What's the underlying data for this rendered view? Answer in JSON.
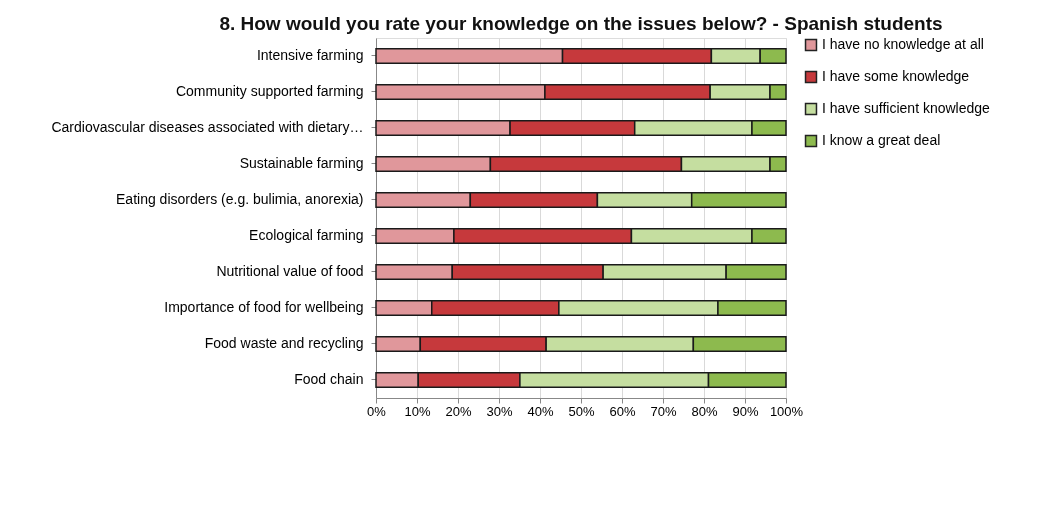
{
  "chart_data": {
    "type": "bar",
    "orientation": "horizontal",
    "stacked": true,
    "title": "8.  How would you rate your knowledge on the issues below? - Spanish students",
    "categories": [
      "Intensive farming",
      "Community supported farming",
      "Cardiovascular diseases associated with dietary…",
      "Sustainable farming",
      "Eating disorders (e.g. bulimia, anorexia)",
      "Ecological farming",
      "Nutritional value of food",
      "Importance of food for wellbeing",
      "Food waste and recycling",
      "Food chain"
    ],
    "series": [
      {
        "name": "I have no knowledge at all",
        "color": "#e0979b",
        "values": [
          45.5,
          41.2,
          32.7,
          27.9,
          23.0,
          19.0,
          18.6,
          13.6,
          10.8,
          10.3
        ]
      },
      {
        "name": "I have some knowledge",
        "color": "#c6393c",
        "values": [
          36.3,
          40.3,
          30.4,
          46.6,
          31.0,
          43.3,
          36.8,
          31.0,
          30.7,
          24.8
        ]
      },
      {
        "name": "I have sufficient knowledge",
        "color": "#c5dea0",
        "values": [
          11.9,
          14.6,
          28.6,
          21.6,
          23.0,
          29.4,
          30.0,
          38.8,
          35.9,
          46.0
        ]
      },
      {
        "name": "I know a great deal",
        "color": "#8dba4e",
        "values": [
          6.3,
          3.9,
          8.3,
          3.9,
          23.0,
          8.3,
          14.6,
          16.6,
          22.6,
          18.9
        ]
      }
    ],
    "xlim": [
      0,
      100
    ],
    "xticks": [
      {
        "value": 0,
        "label": "0%"
      },
      {
        "value": 10,
        "label": "10%"
      },
      {
        "value": 20,
        "label": "20%"
      },
      {
        "value": 30,
        "label": "30%"
      },
      {
        "value": 40,
        "label": "40%"
      },
      {
        "value": 50,
        "label": "50%"
      },
      {
        "value": 60,
        "label": "60%"
      },
      {
        "value": 70,
        "label": "70%"
      },
      {
        "value": 80,
        "label": "80%"
      },
      {
        "value": 90,
        "label": "90%"
      },
      {
        "value": 100,
        "label": "100%"
      }
    ],
    "grid": "x",
    "legend": "top right"
  }
}
